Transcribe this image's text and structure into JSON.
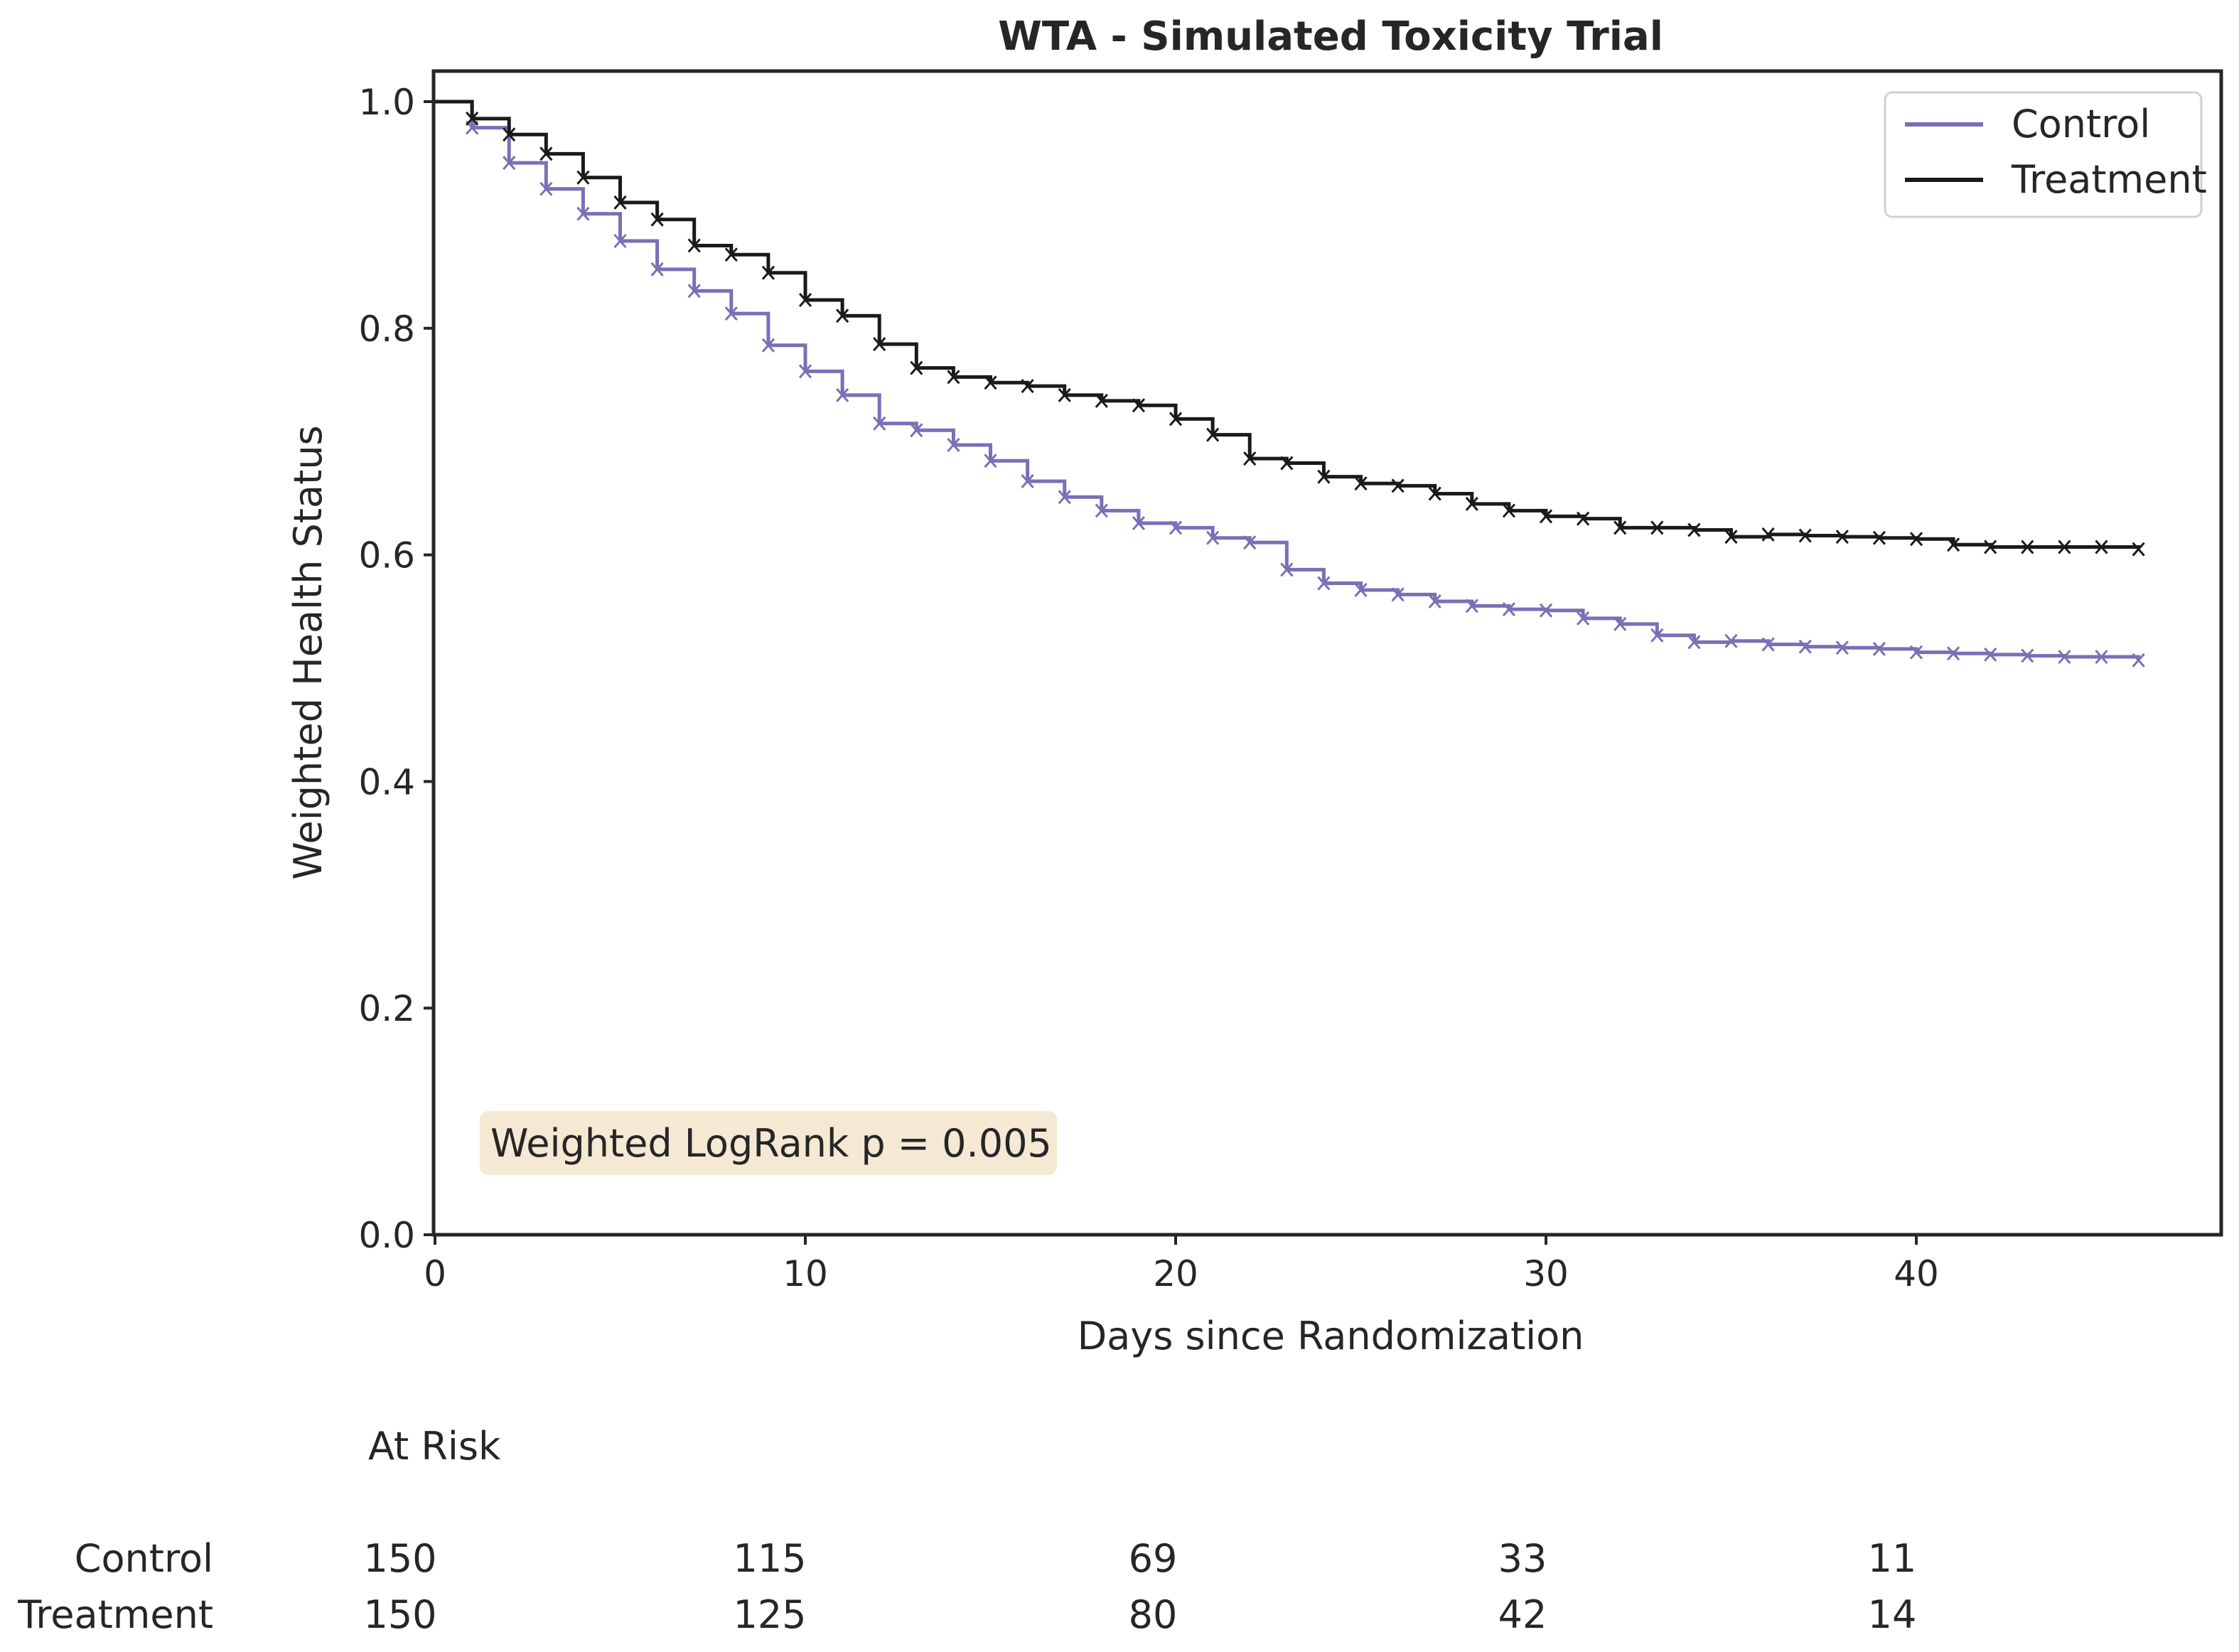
{
  "chart_data": {
    "type": "line",
    "step": "post",
    "title": "WTA - Simulated Toxicity Trial",
    "xlabel": "Days since Randomization",
    "ylabel": "Weighted Health Status",
    "xlim": [
      0,
      48.4
    ],
    "ylim": [
      0,
      1.0
    ],
    "xticks": [
      0,
      10,
      20,
      30,
      40
    ],
    "yticks": [
      0.0,
      0.2,
      0.4,
      0.6,
      0.8,
      1.0
    ],
    "legend_position": "top-right",
    "grid": false,
    "annotation": {
      "text": "Weighted LogRank p = 0.005",
      "box_color": "#f5e9d3"
    },
    "series": [
      {
        "name": "Control",
        "color": "#7b6fb5",
        "x": [
          0,
          1,
          2,
          3,
          4,
          5,
          6,
          7,
          8,
          9,
          10,
          11,
          12,
          13,
          14,
          15,
          16,
          17,
          18,
          19,
          20,
          21,
          22,
          23,
          24,
          25,
          26,
          27,
          28,
          29,
          30,
          31,
          32,
          33,
          34,
          35,
          36,
          37,
          38,
          39,
          40,
          41,
          42,
          43,
          44,
          45,
          46
        ],
        "y": [
          1.0,
          0.977,
          0.946,
          0.923,
          0.901,
          0.877,
          0.852,
          0.833,
          0.813,
          0.785,
          0.762,
          0.741,
          0.716,
          0.71,
          0.697,
          0.683,
          0.665,
          0.651,
          0.639,
          0.628,
          0.624,
          0.615,
          0.611,
          0.587,
          0.575,
          0.569,
          0.565,
          0.559,
          0.555,
          0.552,
          0.551,
          0.544,
          0.539,
          0.529,
          0.523,
          0.524,
          0.521,
          0.519,
          0.518,
          0.517,
          0.514,
          0.513,
          0.512,
          0.511,
          0.51,
          0.51,
          0.507
        ]
      },
      {
        "name": "Treatment",
        "color": "#1a1a1a",
        "x": [
          0,
          1,
          2,
          3,
          4,
          5,
          6,
          7,
          8,
          9,
          10,
          11,
          12,
          13,
          14,
          15,
          16,
          17,
          18,
          19,
          20,
          21,
          22,
          23,
          24,
          25,
          26,
          27,
          28,
          29,
          30,
          31,
          32,
          33,
          34,
          35,
          36,
          37,
          38,
          39,
          40,
          41,
          42,
          43,
          44,
          45,
          46
        ],
        "y": [
          1.0,
          0.985,
          0.971,
          0.954,
          0.933,
          0.911,
          0.896,
          0.873,
          0.865,
          0.849,
          0.825,
          0.811,
          0.786,
          0.765,
          0.757,
          0.752,
          0.749,
          0.741,
          0.736,
          0.732,
          0.72,
          0.706,
          0.685,
          0.681,
          0.669,
          0.663,
          0.661,
          0.654,
          0.645,
          0.639,
          0.634,
          0.632,
          0.624,
          0.624,
          0.622,
          0.616,
          0.618,
          0.617,
          0.616,
          0.615,
          0.614,
          0.609,
          0.607,
          0.607,
          0.607,
          0.607,
          0.605
        ]
      }
    ],
    "at_risk": {
      "title": "At Risk",
      "times": [
        0,
        10,
        20,
        30,
        40
      ],
      "rows": [
        {
          "label": "Control",
          "values": [
            "150",
            "115",
            "69",
            "33",
            "11"
          ]
        },
        {
          "label": "Treatment",
          "values": [
            "150",
            "125",
            "80",
            "42",
            "14"
          ]
        }
      ]
    }
  }
}
